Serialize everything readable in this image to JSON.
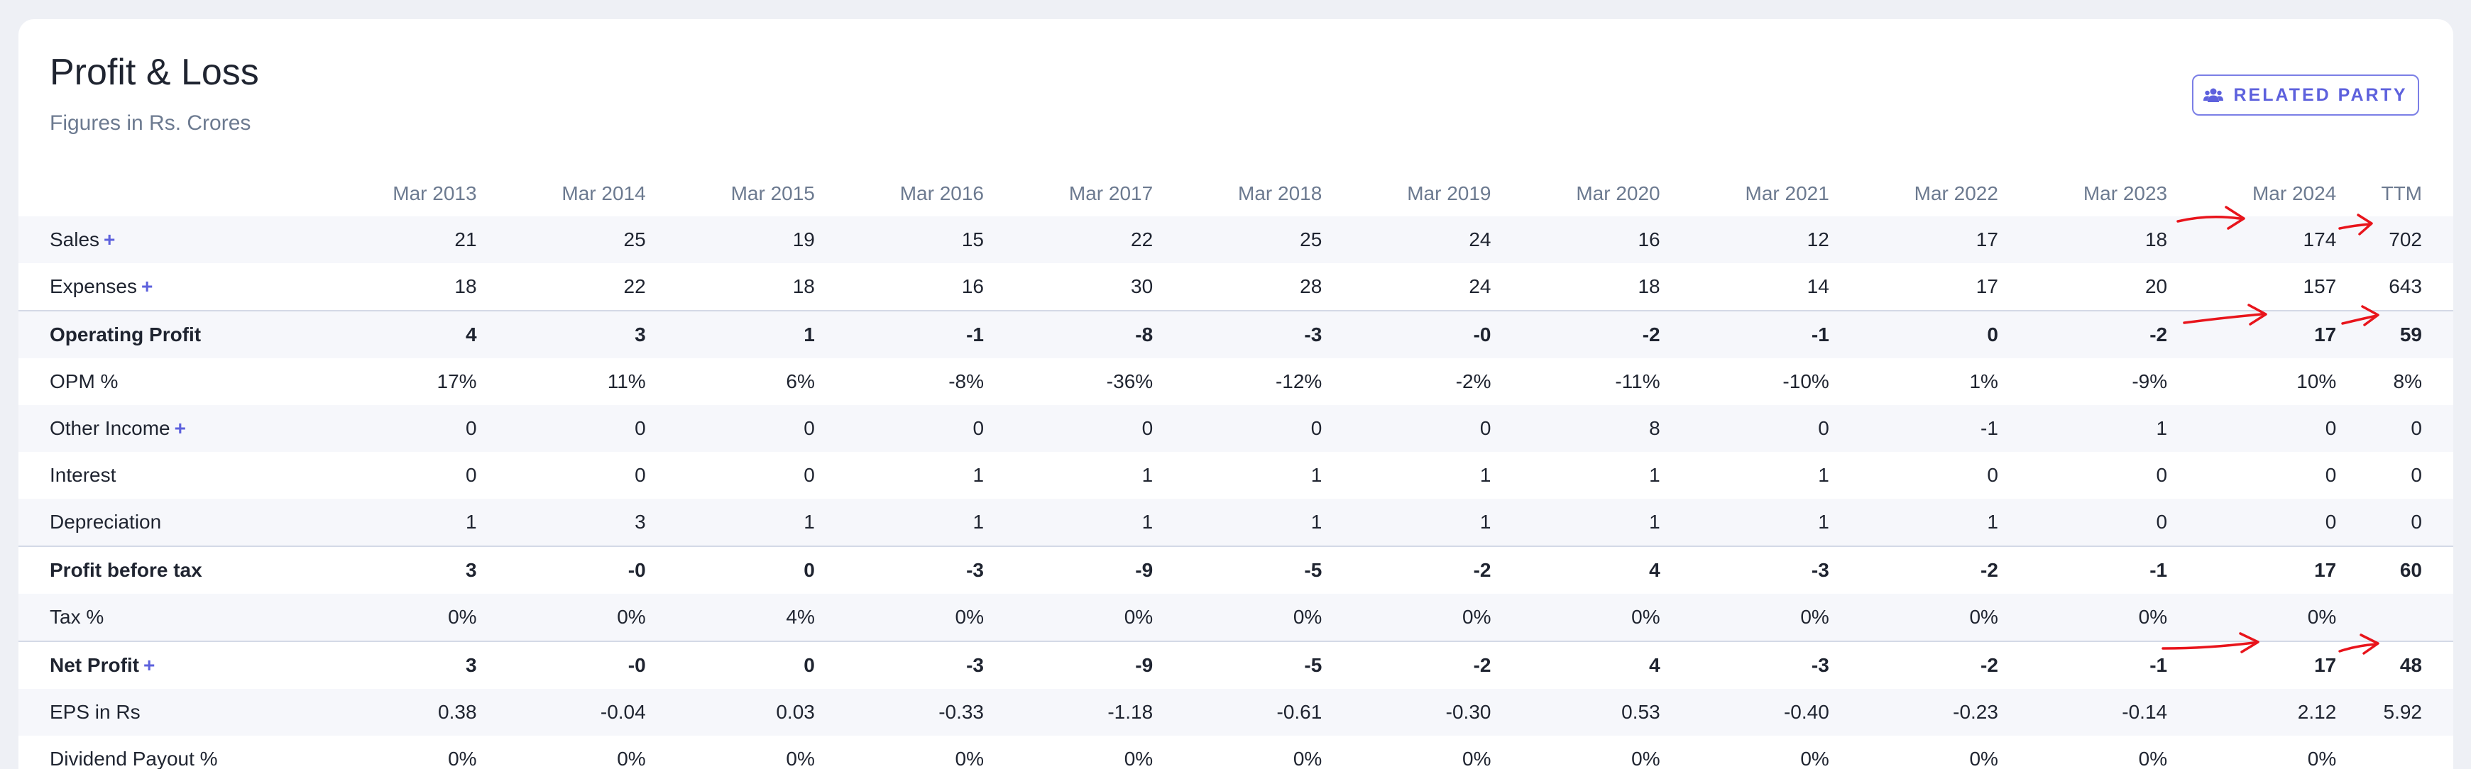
{
  "header": {
    "title": "Profit & Loss",
    "subtitle": "Figures in Rs. Crores",
    "related_party_label": "RELATED PARTY"
  },
  "columns": [
    "Mar 2013",
    "Mar 2014",
    "Mar 2015",
    "Mar 2016",
    "Mar 2017",
    "Mar 2018",
    "Mar 2019",
    "Mar 2020",
    "Mar 2021",
    "Mar 2022",
    "Mar 2023",
    "Mar 2024",
    "TTM"
  ],
  "rows": [
    {
      "label": "Sales",
      "expandable": true,
      "bold": false,
      "values": [
        "21",
        "25",
        "19",
        "15",
        "22",
        "25",
        "24",
        "16",
        "12",
        "17",
        "18",
        "174",
        "702"
      ]
    },
    {
      "label": "Expenses",
      "expandable": true,
      "bold": false,
      "values": [
        "18",
        "22",
        "18",
        "16",
        "30",
        "28",
        "24",
        "18",
        "14",
        "17",
        "20",
        "157",
        "643"
      ]
    },
    {
      "label": "Operating Profit",
      "expandable": false,
      "bold": true,
      "values": [
        "4",
        "3",
        "1",
        "-1",
        "-8",
        "-3",
        "-0",
        "-2",
        "-1",
        "0",
        "-2",
        "17",
        "59"
      ]
    },
    {
      "label": "OPM %",
      "expandable": false,
      "bold": false,
      "values": [
        "17%",
        "11%",
        "6%",
        "-8%",
        "-36%",
        "-12%",
        "-2%",
        "-11%",
        "-10%",
        "1%",
        "-9%",
        "10%",
        "8%"
      ]
    },
    {
      "label": "Other Income",
      "expandable": true,
      "bold": false,
      "values": [
        "0",
        "0",
        "0",
        "0",
        "0",
        "0",
        "0",
        "8",
        "0",
        "-1",
        "1",
        "0",
        "0"
      ]
    },
    {
      "label": "Interest",
      "expandable": false,
      "bold": false,
      "values": [
        "0",
        "0",
        "0",
        "1",
        "1",
        "1",
        "1",
        "1",
        "1",
        "0",
        "0",
        "0",
        "0"
      ]
    },
    {
      "label": "Depreciation",
      "expandable": false,
      "bold": false,
      "values": [
        "1",
        "3",
        "1",
        "1",
        "1",
        "1",
        "1",
        "1",
        "1",
        "1",
        "0",
        "0",
        "0"
      ]
    },
    {
      "label": "Profit before tax",
      "expandable": false,
      "bold": true,
      "values": [
        "3",
        "-0",
        "0",
        "-3",
        "-9",
        "-5",
        "-2",
        "4",
        "-3",
        "-2",
        "-1",
        "17",
        "60"
      ]
    },
    {
      "label": "Tax %",
      "expandable": false,
      "bold": false,
      "values": [
        "0%",
        "0%",
        "4%",
        "0%",
        "0%",
        "0%",
        "0%",
        "0%",
        "0%",
        "0%",
        "0%",
        "0%",
        ""
      ]
    },
    {
      "label": "Net Profit",
      "expandable": true,
      "bold": true,
      "values": [
        "3",
        "-0",
        "0",
        "-3",
        "-9",
        "-5",
        "-2",
        "4",
        "-3",
        "-2",
        "-1",
        "17",
        "48"
      ]
    },
    {
      "label": "EPS in Rs",
      "expandable": false,
      "bold": false,
      "values": [
        "0.38",
        "-0.04",
        "0.03",
        "-0.33",
        "-1.18",
        "-0.61",
        "-0.30",
        "0.53",
        "-0.40",
        "-0.23",
        "-0.14",
        "2.12",
        "5.92"
      ]
    },
    {
      "label": "Dividend Payout %",
      "expandable": false,
      "bold": false,
      "values": [
        "0%",
        "0%",
        "0%",
        "0%",
        "0%",
        "0%",
        "0%",
        "0%",
        "0%",
        "0%",
        "0%",
        "0%",
        ""
      ]
    }
  ],
  "plus_symbol": "+",
  "colors": {
    "accent": "#5d61dd",
    "annotation": "#e8141b"
  }
}
